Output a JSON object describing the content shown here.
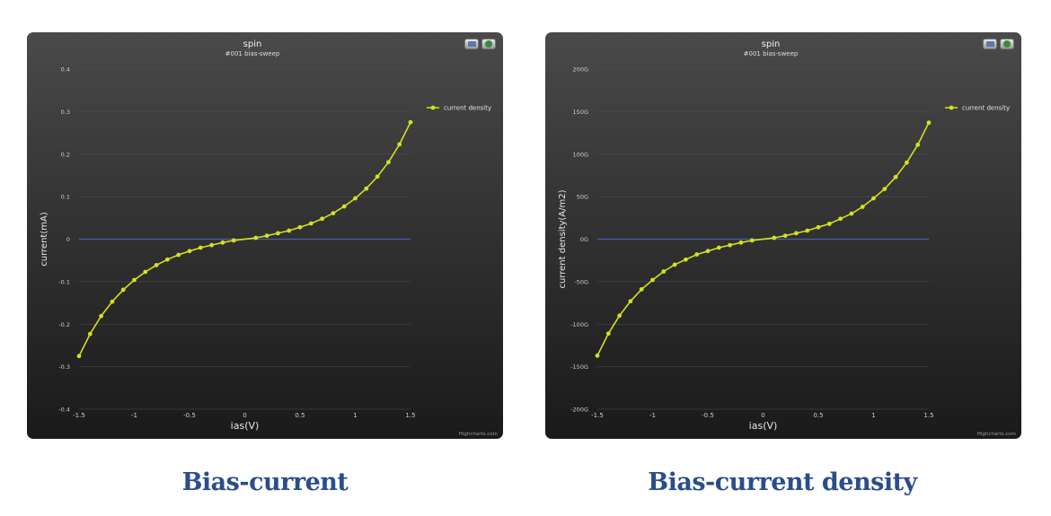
{
  "charts": [
    {
      "caption": "Bias-current",
      "title": "spin",
      "subtitle": "#001 bias-sweep",
      "credits": "Highcharts.com",
      "chart_data": {
        "type": "line",
        "title": "spin",
        "subtitle": "#001 bias-sweep",
        "xlabel": "ias(V)",
        "ylabel": "current(mA)",
        "xlim": [
          -1.5,
          1.5
        ],
        "ylim": [
          -0.4,
          0.4
        ],
        "xticks": [
          -1.5,
          -1,
          -0.5,
          0,
          0.5,
          1,
          1.5
        ],
        "xtick_labels": [
          "-1.5",
          "-1",
          "-0.5",
          "0",
          "0.5",
          "1",
          "1.5"
        ],
        "yticks": [
          -0.4,
          -0.3,
          -0.2,
          -0.1,
          0,
          0.1,
          0.2,
          0.3,
          0.4
        ],
        "ytick_labels": [
          "-0.4",
          "-0.3",
          "-0.2",
          "-0.1",
          "0",
          "0.1",
          "0.2",
          "0.3",
          "0.4"
        ],
        "grid": true,
        "legend_position": "top-right",
        "series": [
          {
            "name": "current density",
            "color": "#d4e020",
            "x": [
              -1.5,
              -1.4,
              -1.3,
              -1.2,
              -1.1,
              -1.0,
              -0.9,
              -0.8,
              -0.7,
              -0.6,
              -0.5,
              -0.4,
              -0.3,
              -0.2,
              -0.1,
              0.1,
              0.2,
              0.3,
              0.4,
              0.5,
              0.6,
              0.7,
              0.8,
              0.9,
              1.0,
              1.1,
              1.2,
              1.3,
              1.4,
              1.5
            ],
            "y": [
              -0.275,
              -0.223,
              -0.181,
              -0.147,
              -0.119,
              -0.096,
              -0.077,
              -0.061,
              -0.048,
              -0.037,
              -0.028,
              -0.02,
              -0.014,
              -0.008,
              -0.003,
              0.003,
              0.008,
              0.014,
              0.02,
              0.028,
              0.037,
              0.048,
              0.061,
              0.077,
              0.096,
              0.119,
              0.147,
              0.181,
              0.223,
              0.275
            ]
          }
        ]
      }
    },
    {
      "caption": "Bias-current density",
      "title": "spin",
      "subtitle": "#001 bias-sweep",
      "credits": "Highcharts.com",
      "chart_data": {
        "type": "line",
        "title": "spin",
        "subtitle": "#001 bias-sweep",
        "xlabel": "ias(V)",
        "ylabel": "current density(A/m2)",
        "xlim": [
          -1.5,
          1.5
        ],
        "ylim": [
          -200,
          200
        ],
        "xticks": [
          -1.5,
          -1,
          -0.5,
          0,
          0.5,
          1,
          1.5
        ],
        "xtick_labels": [
          "-1.5",
          "-1",
          "-0.5",
          "0",
          "0.5",
          "1",
          "1.5"
        ],
        "yticks": [
          -200,
          -150,
          -100,
          -50,
          0,
          50,
          100,
          150,
          200
        ],
        "ytick_labels": [
          "-200G",
          "-150G",
          "-100G",
          "-50G",
          "0G",
          "50G",
          "100G",
          "150G",
          "200G"
        ],
        "grid": true,
        "legend_position": "top-right",
        "series": [
          {
            "name": "current density",
            "color": "#d4e020",
            "x": [
              -1.5,
              -1.4,
              -1.3,
              -1.2,
              -1.1,
              -1.0,
              -0.9,
              -0.8,
              -0.7,
              -0.6,
              -0.5,
              -0.4,
              -0.3,
              -0.2,
              -0.1,
              0.1,
              0.2,
              0.3,
              0.4,
              0.5,
              0.6,
              0.7,
              0.8,
              0.9,
              1.0,
              1.1,
              1.2,
              1.3,
              1.4,
              1.5
            ],
            "y": [
              -137,
              -111,
              -90,
              -73,
              -59,
              -48,
              -38,
              -30,
              -24,
              -18,
              -14,
              -10,
              -7,
              -4,
              -1.5,
              1.5,
              4,
              7,
              10,
              14,
              18,
              24,
              30,
              38,
              48,
              59,
              73,
              90,
              111,
              137
            ]
          }
        ]
      }
    }
  ]
}
